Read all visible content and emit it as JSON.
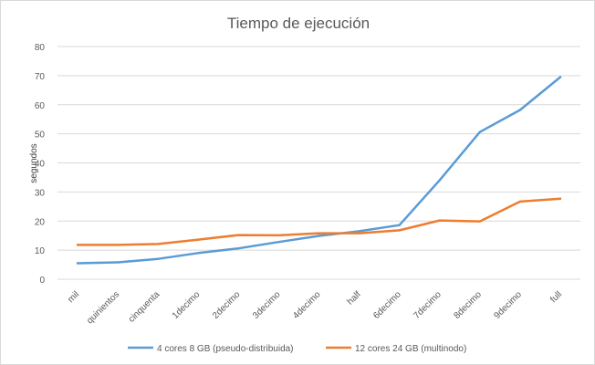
{
  "chart_data": {
    "type": "line",
    "title": "Tiempo de ejecución",
    "xlabel": "",
    "ylabel": "segundos",
    "ylim": [
      0,
      80
    ],
    "y_ticks": [
      0,
      10,
      20,
      30,
      40,
      50,
      60,
      70,
      80
    ],
    "grid": true,
    "legend_position": "bottom",
    "categories": [
      "mil",
      "quinientos",
      "cinquenta",
      "1decimo",
      "2decimo",
      "3decimo",
      "4decimo",
      "half",
      "6decimo",
      "7decimo",
      "8decimo",
      "9decimo",
      "full"
    ],
    "series": [
      {
        "name": "4 cores 8 GB (pseudo-distribuida)",
        "color": "#5b9bd5",
        "values": [
          5.5,
          5.8,
          7.0,
          9.0,
          10.6,
          12.8,
          14.9,
          16.5,
          18.6,
          34.0,
          50.6,
          58.2,
          69.5
        ]
      },
      {
        "name": "12 cores 24 GB (multinodo)",
        "color": "#ed7d31",
        "values": [
          11.8,
          11.8,
          12.1,
          13.6,
          15.2,
          15.1,
          15.8,
          15.8,
          16.8,
          20.2,
          19.9,
          26.7,
          27.7
        ]
      }
    ]
  }
}
